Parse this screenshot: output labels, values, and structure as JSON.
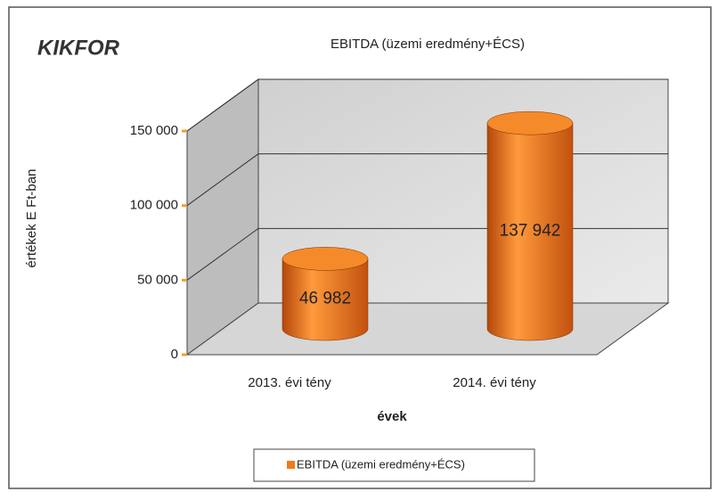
{
  "logo": "KIKFOR",
  "chart_data": {
    "type": "bar",
    "title": "EBITDA (üzemi eredmény+ÉCS)",
    "y_label": "értékek E Ft-ban",
    "x_label": "évek",
    "categories": [
      "2013. évi tény",
      "2014. évi tény"
    ],
    "series": [
      {
        "name": "EBITDA (üzemi eredmény+ÉCS)",
        "color": "#f07a1a",
        "values": [
          46982,
          137942
        ],
        "value_labels": [
          "46 982",
          "137 942"
        ]
      }
    ],
    "ylim": [
      0,
      150000
    ],
    "yticks": [
      0,
      {
        "value": 50000,
        "label": "50 000"
      },
      {
        "value": 100000,
        "label": "100 000"
      },
      {
        "value": 150000,
        "label": "150 000"
      }
    ],
    "grid": true
  }
}
